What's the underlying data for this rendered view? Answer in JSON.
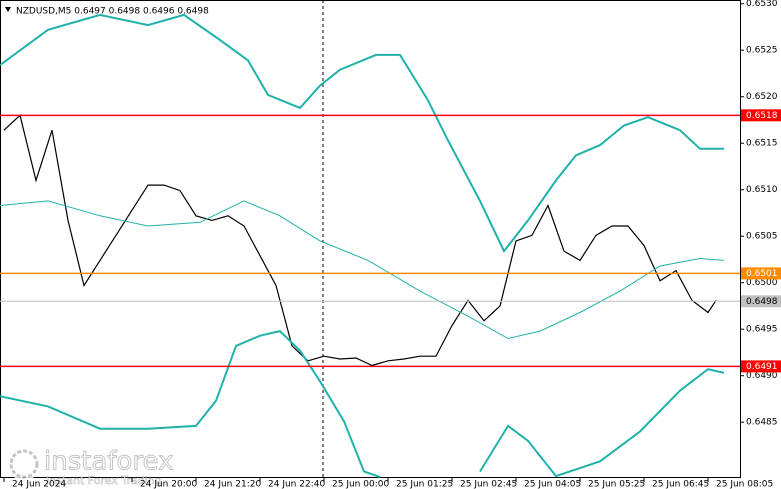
{
  "chart_data": {
    "type": "line",
    "title": "NZDUSD,M5 0.6497 0.6498 0.6496 0.6498",
    "xlim": [
      0,
      185
    ],
    "xticks": [
      {
        "value": 1,
        "label": "24 Jun 2024"
      },
      {
        "value": 33,
        "label": "24 Jun 20:00"
      },
      {
        "value": 49,
        "label": "24 Jun 21:20"
      },
      {
        "value": 65,
        "label": "24 Jun 22:40"
      },
      {
        "value": 81,
        "label": "25 Jun 00:00"
      },
      {
        "value": 97,
        "label": "25 Jun 01:25"
      },
      {
        "value": 113,
        "label": "25 Jun 02:45"
      },
      {
        "value": 129,
        "label": "25 Jun 04:05"
      },
      {
        "value": 145,
        "label": "25 Jun 05:25"
      },
      {
        "value": 161,
        "label": "25 Jun 06:45"
      },
      {
        "value": 177,
        "label": "25 Jun 08:05"
      }
    ],
    "ylim": [
      0.6479,
      0.65304
    ],
    "yticks": [
      0.6485,
      {
        "value": 0.649,
        "label": "0.6490"
      },
      0.6495,
      {
        "value": 0.65,
        "label": "0.6500"
      },
      0.6505,
      {
        "value": 0.651,
        "label": "0.6510"
      },
      0.6515,
      {
        "value": 0.652,
        "label": "0.6520"
      },
      0.6525,
      {
        "value": 0.653,
        "label": "0.6530"
      }
    ],
    "series": [
      {
        "color": "#000000",
        "width": 1.2,
        "x": [
          1,
          5,
          9,
          13,
          17,
          21,
          25,
          29,
          33,
          37,
          41,
          45,
          49,
          53,
          57,
          61,
          65,
          69,
          73,
          77,
          81,
          85,
          89,
          93,
          97,
          101,
          105,
          109,
          113,
          117,
          121,
          125,
          129,
          133,
          137,
          141,
          145,
          149,
          153,
          157,
          161,
          165,
          169,
          173,
          177,
          179
        ],
        "values": [
          0.65164,
          0.6518,
          0.6511,
          0.65164,
          0.65067,
          0.64997,
          0.65024,
          0.65051,
          0.65078,
          0.65105,
          0.65105,
          0.65099,
          0.65072,
          0.65067,
          0.65072,
          0.65061,
          0.65029,
          0.64997,
          0.64932,
          0.64916,
          0.64921,
          0.64918,
          0.64919,
          0.64911,
          0.64916,
          0.64918,
          0.64921,
          0.64921,
          0.64954,
          0.64981,
          0.64959,
          0.64975,
          0.65045,
          0.65051,
          0.65083,
          0.65034,
          0.65024,
          0.65051,
          0.65061,
          0.65061,
          0.6504,
          0.65002,
          0.65013,
          0.64981,
          0.64968,
          0.64981
        ]
      },
      {
        "color": "#20b2aa",
        "width": 2,
        "x": [
          0,
          12,
          25,
          37,
          46,
          55,
          62,
          67,
          75,
          80,
          85,
          94,
          100,
          107,
          112,
          120,
          126,
          132,
          139,
          144,
          150,
          156,
          162,
          170,
          175,
          181
        ],
        "values": [
          0.65234,
          0.65272,
          0.65288,
          0.65277,
          0.65288,
          0.65261,
          0.65239,
          0.65202,
          0.65188,
          0.65212,
          0.65229,
          0.65245,
          0.65245,
          0.65196,
          0.65153,
          0.65088,
          0.65034,
          0.65067,
          0.6511,
          0.65137,
          0.65148,
          0.65169,
          0.65178,
          0.65164,
          0.65144,
          0.65144
        ]
      },
      {
        "color": "#20b2aa",
        "width": 1,
        "x": [
          0,
          12,
          25,
          37,
          50,
          61,
          70,
          80,
          92,
          105,
          117,
          127,
          135,
          145,
          155,
          165,
          175,
          181
        ],
        "values": [
          0.65083,
          0.65088,
          0.65072,
          0.65061,
          0.65065,
          0.65088,
          0.65072,
          0.65045,
          0.65024,
          0.64991,
          0.64964,
          0.6494,
          0.64948,
          0.64968,
          0.64991,
          0.65018,
          0.65026,
          0.65024
        ]
      },
      {
        "color": "#20b2aa",
        "width": 2,
        "x": [
          0,
          12,
          25,
          37,
          49,
          54,
          59,
          65,
          70,
          75,
          80,
          86,
          91,
          95,
          108,
          120,
          127,
          132,
          139,
          150,
          160,
          170,
          177,
          181
        ],
        "values": [
          0.64878,
          0.64867,
          0.64843,
          0.64843,
          0.64846,
          0.64873,
          0.64932,
          0.64943,
          0.64948,
          0.64927,
          0.64894,
          0.64851,
          0.64797,
          0.64791,
          null,
          0.64797,
          0.64846,
          0.6483,
          0.64792,
          0.64808,
          0.6484,
          0.64884,
          0.64907,
          0.64903
        ]
      }
    ],
    "levels": [
      {
        "value": 0.6518,
        "color": "#ff0000"
      },
      {
        "value": 0.6501,
        "color": "#ff8c00"
      },
      {
        "value": 0.6498,
        "color": "#c0c0c0"
      },
      {
        "value": 0.6491,
        "color": "#ff0000"
      }
    ],
    "watermark": {
      "brand": "instaforex",
      "tagline": "Instant Forex Trading"
    }
  }
}
